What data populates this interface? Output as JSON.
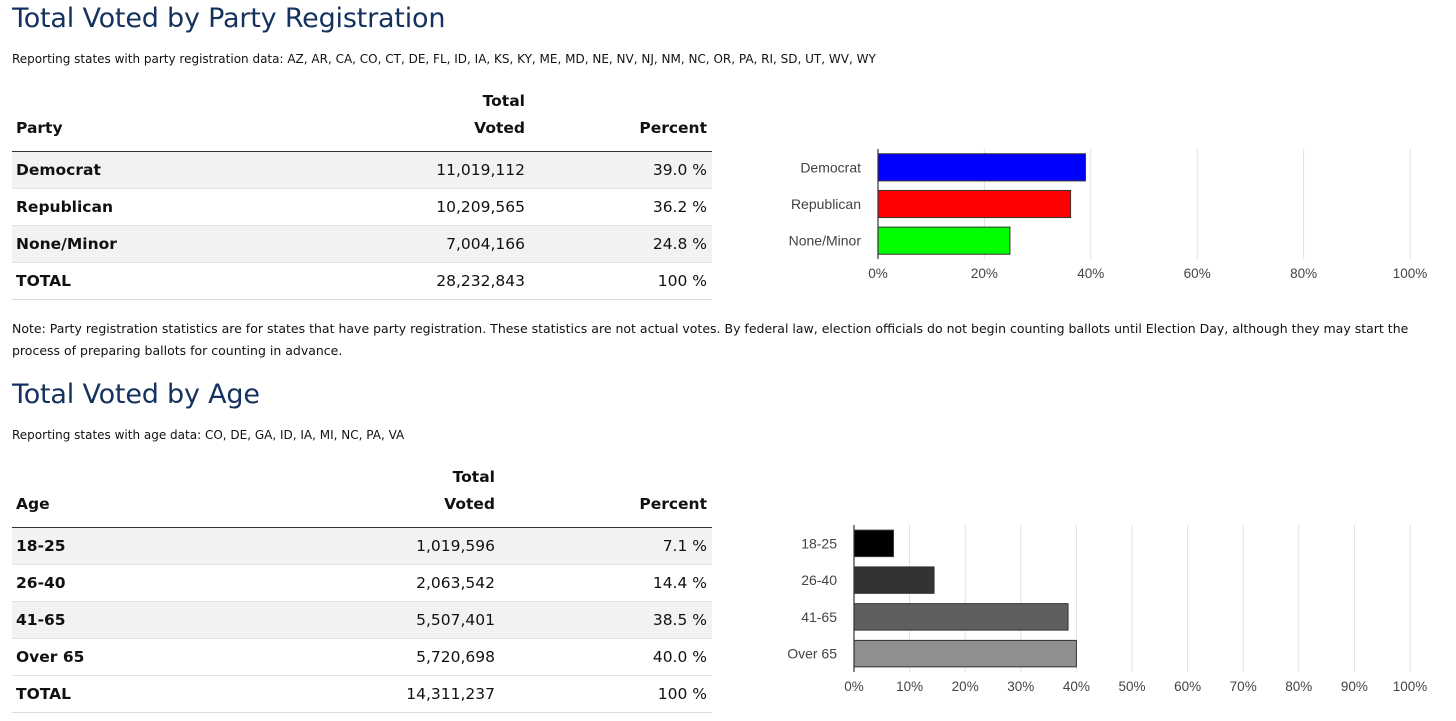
{
  "party": {
    "title": "Total Voted by Party Registration",
    "subtitle": "Reporting states with party registration data: AZ, AR, CA, CO, CT, DE, FL, ID, IA, KS, KY, ME, MD, NE, NV, NJ, NM, NC, OR, PA, RI, SD, UT, WV, WY",
    "header": {
      "col1": "Party",
      "col2_line1": "Total",
      "col2_line2": "Voted",
      "col3": "Percent"
    },
    "rows": [
      {
        "label": "Democrat",
        "voted": "11,019,112",
        "percent": "39.0 %"
      },
      {
        "label": "Republican",
        "voted": "10,209,565",
        "percent": "36.2 %"
      },
      {
        "label": "None/Minor",
        "voted": "7,004,166",
        "percent": "24.8 %"
      }
    ],
    "total": {
      "label": "TOTAL",
      "voted": "28,232,843",
      "percent": "100 %"
    }
  },
  "note": "Note: Party registration statistics are for states that have party registration. These statistics are not actual votes. By federal law, election officials do not begin counting ballots until Election Day, although they may start the process of preparing ballots for counting in advance.",
  "age": {
    "title": "Total Voted by Age",
    "subtitle": "Reporting states with age data: CO, DE, GA, ID, IA, MI, NC, PA, VA",
    "header": {
      "col1": "Age",
      "col2_line1": "Total",
      "col2_line2": "Voted",
      "col3": "Percent"
    },
    "rows": [
      {
        "label": "18-25",
        "voted": "1,019,596",
        "percent": "7.1 %"
      },
      {
        "label": "26-40",
        "voted": "2,063,542",
        "percent": "14.4 %"
      },
      {
        "label": "41-65",
        "voted": "5,507,401",
        "percent": "38.5 %"
      },
      {
        "label": "Over 65",
        "voted": "5,720,698",
        "percent": "40.0 %"
      }
    ],
    "total": {
      "label": "TOTAL",
      "voted": "14,311,237",
      "percent": "100 %"
    }
  },
  "chart_data": [
    {
      "type": "bar",
      "orientation": "horizontal",
      "title": "",
      "categories": [
        "Democrat",
        "Republican",
        "None/Minor"
      ],
      "values": [
        39.0,
        36.2,
        24.8
      ],
      "colors": [
        "#0000ff",
        "#ff0000",
        "#00ff00"
      ],
      "xlim": [
        0,
        100
      ],
      "xticks": [
        "0%",
        "20%",
        "40%",
        "60%",
        "80%",
        "100%"
      ],
      "xlabel": "",
      "ylabel": "",
      "grid": true
    },
    {
      "type": "bar",
      "orientation": "horizontal",
      "title": "",
      "categories": [
        "18-25",
        "26-40",
        "41-65",
        "Over 65"
      ],
      "values": [
        7.1,
        14.4,
        38.5,
        40.0
      ],
      "colors": [
        "#000000",
        "#333333",
        "#5f5f5f",
        "#8f8f8f"
      ],
      "xlim": [
        0,
        100
      ],
      "xticks": [
        "0%",
        "10%",
        "20%",
        "30%",
        "40%",
        "50%",
        "60%",
        "70%",
        "80%",
        "90%",
        "100%"
      ],
      "xlabel": "",
      "ylabel": "",
      "grid": true
    }
  ]
}
